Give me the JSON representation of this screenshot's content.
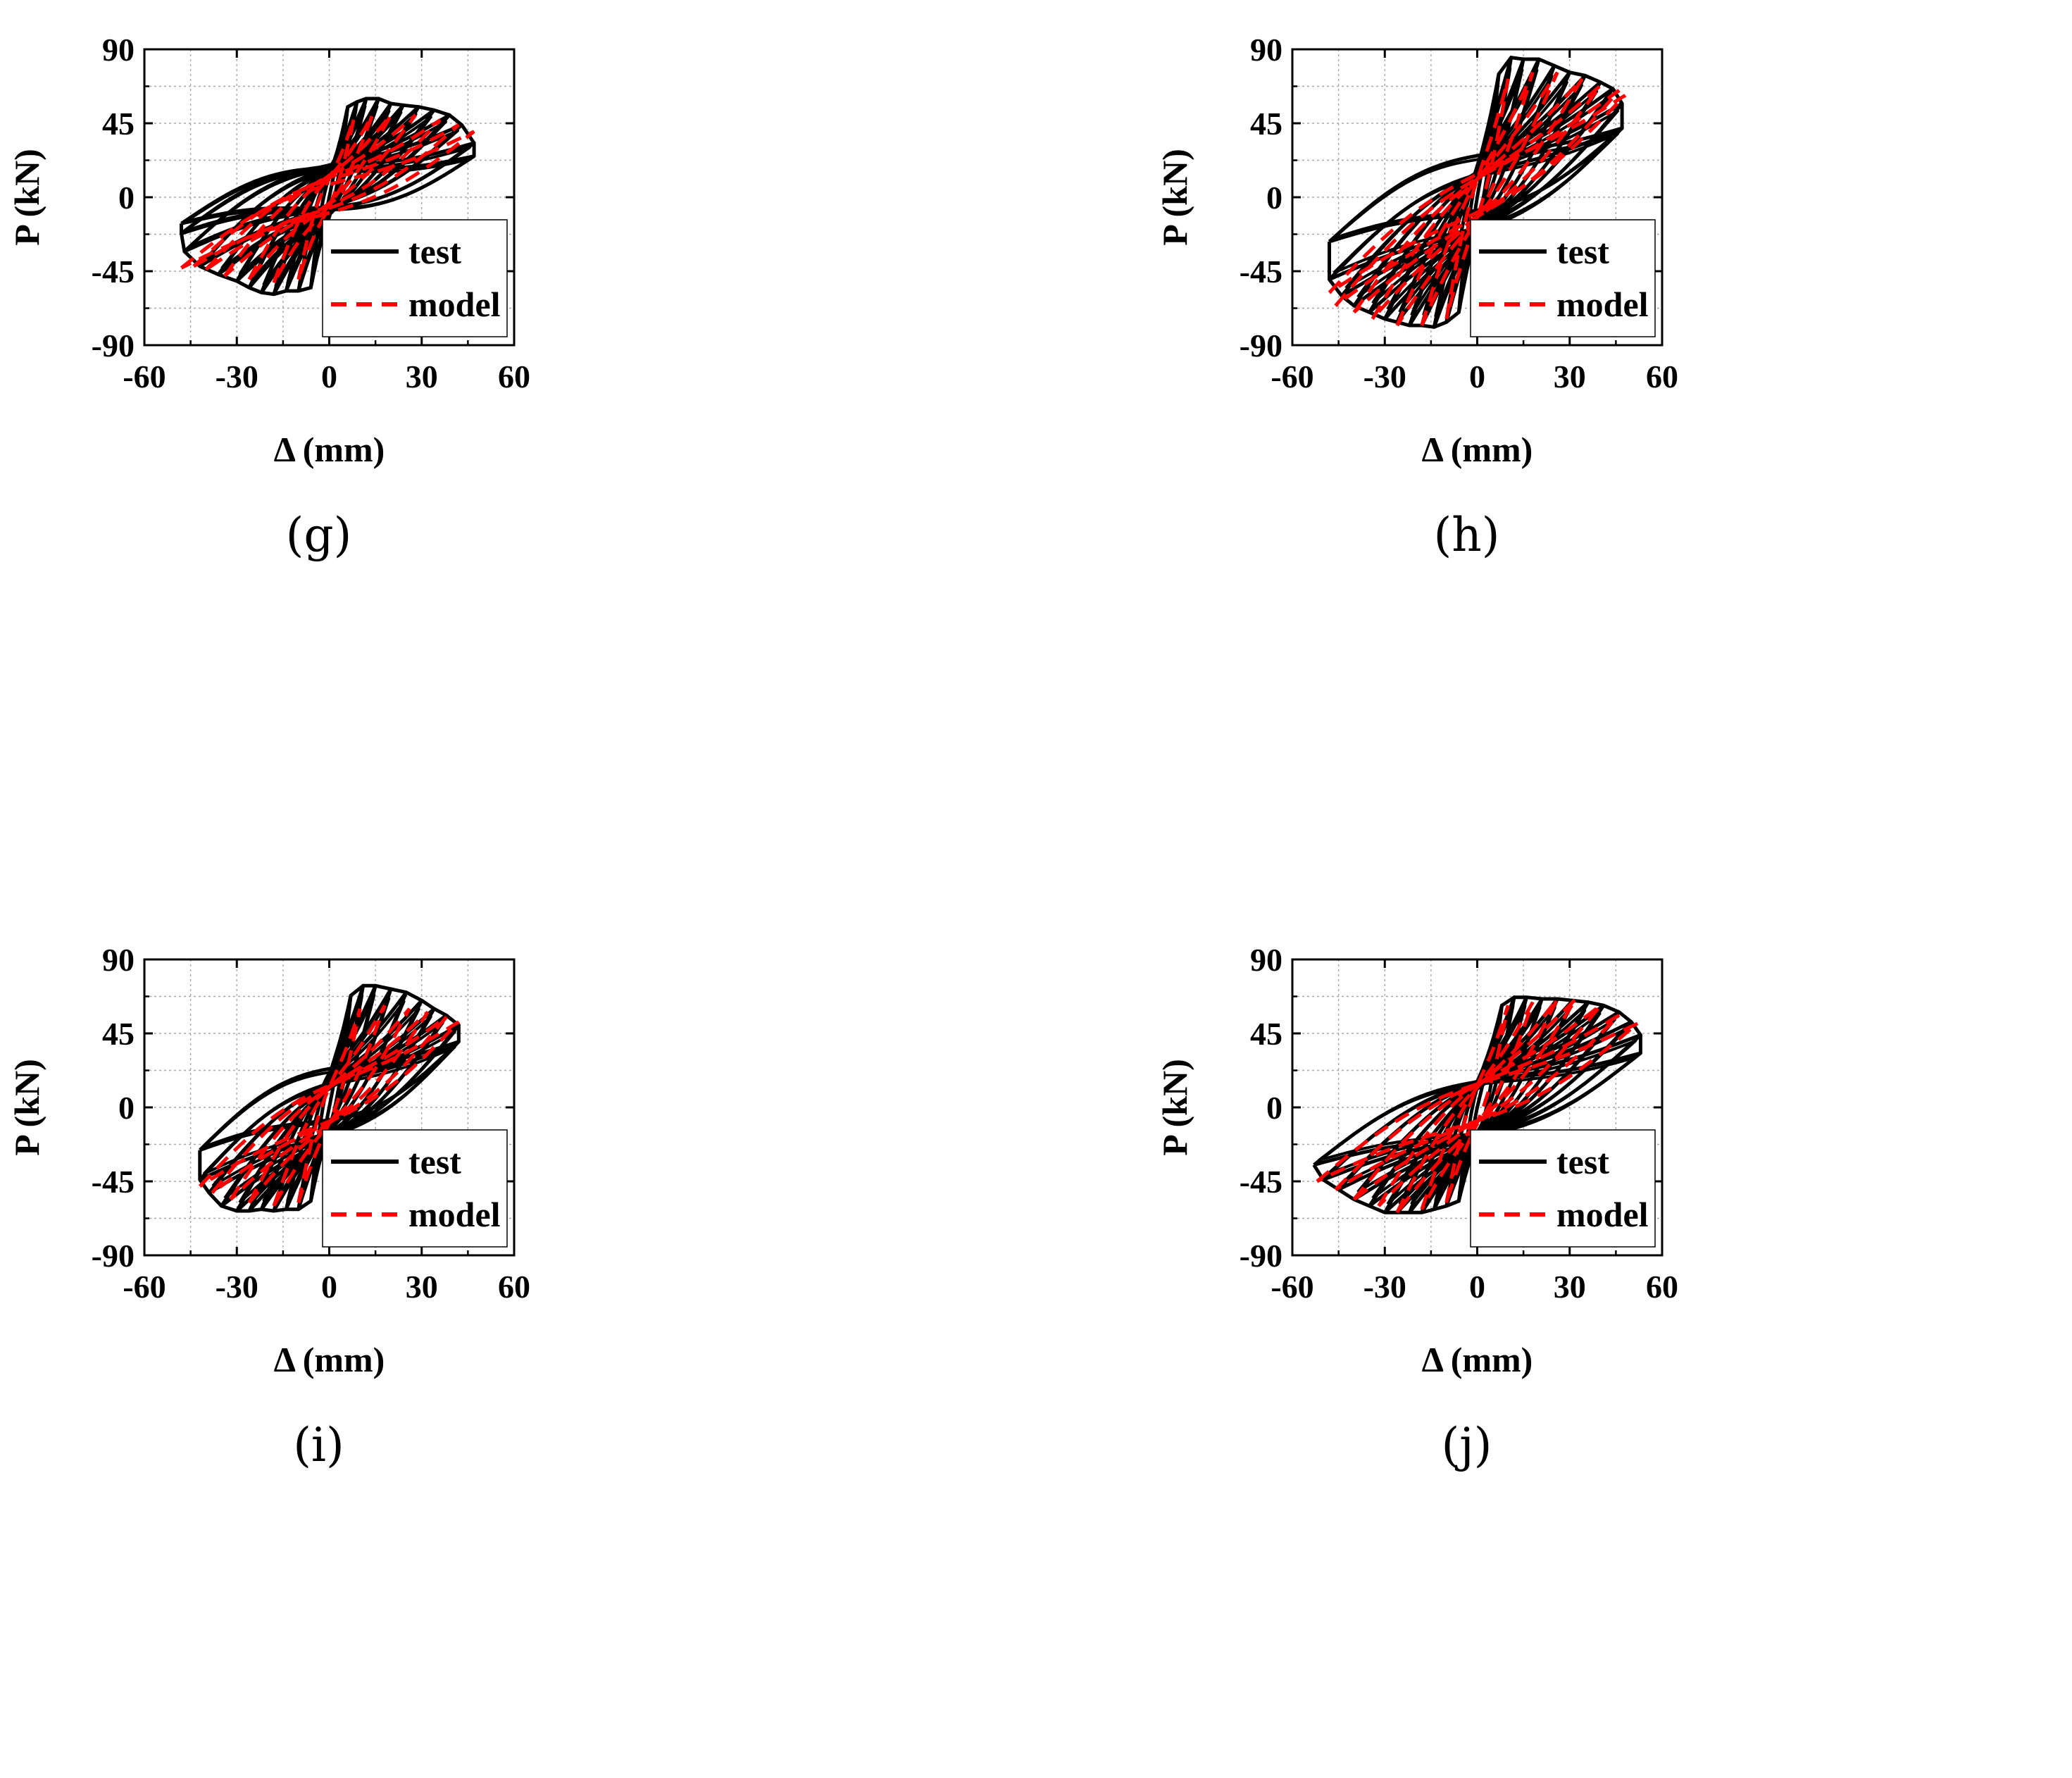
{
  "figure": {
    "panels": [
      "g",
      "h",
      "i",
      "j"
    ]
  },
  "chart_data": [
    {
      "panel": "g",
      "label": "(g)",
      "type": "line",
      "xlabel": "Δ (mm)",
      "ylabel": "P (kN)",
      "xlim": [
        -60,
        60
      ],
      "ylim": [
        -90,
        90
      ],
      "xticks": [
        "-60",
        "-30",
        "0",
        "30",
        "60"
      ],
      "yticks": [
        "-90",
        "-45",
        "0",
        "45",
        "90"
      ],
      "grid": true,
      "legend_position": "bottom-right",
      "series": [
        {
          "name": "test",
          "color": "#000000",
          "style": "solid"
        },
        {
          "name": "model",
          "color": "#ff0000",
          "style": "dashed"
        }
      ],
      "cycles": {
        "peak_pos": [
          [
            6,
            55
          ],
          [
            9,
            58
          ],
          [
            12,
            60
          ],
          [
            16,
            60
          ],
          [
            20,
            57
          ],
          [
            24,
            56
          ],
          [
            29,
            55
          ],
          [
            34,
            53
          ],
          [
            39,
            50
          ],
          [
            43,
            44
          ],
          [
            47,
            33
          ],
          [
            47,
            25
          ]
        ],
        "peak_neg": [
          [
            -6,
            -55
          ],
          [
            -10,
            -57
          ],
          [
            -14,
            -57
          ],
          [
            -18,
            -59
          ],
          [
            -22,
            -58
          ],
          [
            -26,
            -55
          ],
          [
            -30,
            -51
          ],
          [
            -36,
            -47
          ],
          [
            -42,
            -42
          ],
          [
            -47,
            -33
          ],
          [
            -48,
            -22
          ],
          [
            -48,
            -16
          ]
        ],
        "model_peak_pos": [
          [
            8,
            48
          ],
          [
            14,
            50
          ],
          [
            20,
            50
          ],
          [
            28,
            50
          ],
          [
            36,
            47
          ],
          [
            42,
            44
          ],
          [
            47,
            40
          ]
        ],
        "model_peak_neg": [
          [
            -10,
            -50
          ],
          [
            -18,
            -52
          ],
          [
            -26,
            -50
          ],
          [
            -34,
            -48
          ],
          [
            -40,
            -44
          ],
          [
            -44,
            -42
          ],
          [
            -48,
            -43
          ]
        ],
        "pos_intercept": 24,
        "neg_intercept": -22
      }
    },
    {
      "panel": "h",
      "label": "(h)",
      "type": "line",
      "xlabel": "Δ (mm)",
      "ylabel": "P (kN)",
      "xlim": [
        -60,
        60
      ],
      "ylim": [
        -90,
        90
      ],
      "xticks": [
        "-60",
        "-30",
        "0",
        "30",
        "60"
      ],
      "yticks": [
        "-90",
        "-45",
        "0",
        "45",
        "90"
      ],
      "grid": true,
      "legend_position": "bottom-right",
      "series": [
        {
          "name": "test",
          "color": "#000000",
          "style": "solid"
        },
        {
          "name": "model",
          "color": "#ff0000",
          "style": "dashed"
        }
      ],
      "cycles": {
        "peak_pos": [
          [
            7,
            75
          ],
          [
            11,
            85
          ],
          [
            15,
            84
          ],
          [
            20,
            84
          ],
          [
            25,
            80
          ],
          [
            30,
            76
          ],
          [
            35,
            74
          ],
          [
            40,
            70
          ],
          [
            44,
            66
          ],
          [
            47,
            57
          ],
          [
            47,
            42
          ]
        ],
        "peak_neg": [
          [
            -6,
            -70
          ],
          [
            -10,
            -76
          ],
          [
            -14,
            -79
          ],
          [
            -18,
            -78
          ],
          [
            -22,
            -78
          ],
          [
            -26,
            -76
          ],
          [
            -30,
            -74
          ],
          [
            -35,
            -70
          ],
          [
            -40,
            -66
          ],
          [
            -44,
            -60
          ],
          [
            -48,
            -50
          ],
          [
            -48,
            -27
          ]
        ],
        "model_peak_pos": [
          [
            10,
            72
          ],
          [
            18,
            76
          ],
          [
            26,
            76
          ],
          [
            34,
            72
          ],
          [
            40,
            68
          ],
          [
            46,
            65
          ],
          [
            48,
            62
          ]
        ],
        "model_peak_neg": [
          [
            -10,
            -74
          ],
          [
            -18,
            -78
          ],
          [
            -26,
            -78
          ],
          [
            -34,
            -74
          ],
          [
            -40,
            -70
          ],
          [
            -46,
            -66
          ],
          [
            -48,
            -58
          ]
        ],
        "pos_intercept": 32,
        "neg_intercept": -30
      }
    },
    {
      "panel": "i",
      "label": "(i)",
      "type": "line",
      "xlabel": "Δ (mm)",
      "ylabel": "P (kN)",
      "xlim": [
        -60,
        60
      ],
      "ylim": [
        -90,
        90
      ],
      "xticks": [
        "-60",
        "-30",
        "0",
        "30",
        "60"
      ],
      "yticks": [
        "-90",
        "-45",
        "0",
        "45",
        "90"
      ],
      "grid": true,
      "legend_position": "bottom-right",
      "series": [
        {
          "name": "test",
          "color": "#000000",
          "style": "solid"
        },
        {
          "name": "model",
          "color": "#ff0000",
          "style": "dashed"
        }
      ],
      "cycles": {
        "peak_pos": [
          [
            7,
            68
          ],
          [
            11,
            74
          ],
          [
            15,
            74
          ],
          [
            20,
            72
          ],
          [
            25,
            70
          ],
          [
            30,
            65
          ],
          [
            34,
            60
          ],
          [
            38,
            56
          ],
          [
            42,
            50
          ],
          [
            42,
            40
          ]
        ],
        "peak_neg": [
          [
            -6,
            -57
          ],
          [
            -10,
            -62
          ],
          [
            -14,
            -62
          ],
          [
            -18,
            -63
          ],
          [
            -22,
            -62
          ],
          [
            -26,
            -63
          ],
          [
            -30,
            -63
          ],
          [
            -35,
            -60
          ],
          [
            -39,
            -52
          ],
          [
            -42,
            -44
          ],
          [
            -42,
            -26
          ]
        ],
        "model_peak_pos": [
          [
            10,
            60
          ],
          [
            18,
            62
          ],
          [
            26,
            60
          ],
          [
            32,
            58
          ],
          [
            38,
            55
          ],
          [
            42,
            52
          ]
        ],
        "model_peak_neg": [
          [
            -10,
            -58
          ],
          [
            -18,
            -60
          ],
          [
            -26,
            -58
          ],
          [
            -32,
            -56
          ],
          [
            -38,
            -52
          ],
          [
            -42,
            -48
          ]
        ],
        "pos_intercept": 30,
        "neg_intercept": -28
      }
    },
    {
      "panel": "j",
      "label": "(j)",
      "type": "line",
      "xlabel": "Δ (mm)",
      "ylabel": "P (kN)",
      "xlim": [
        -60,
        60
      ],
      "ylim": [
        -90,
        90
      ],
      "xticks": [
        "-60",
        "-30",
        "0",
        "30",
        "60"
      ],
      "yticks": [
        "-90",
        "-45",
        "0",
        "45",
        "90"
      ],
      "grid": true,
      "legend_position": "bottom-right",
      "series": [
        {
          "name": "test",
          "color": "#000000",
          "style": "solid"
        },
        {
          "name": "model",
          "color": "#ff0000",
          "style": "dashed"
        }
      ],
      "cycles": {
        "peak_pos": [
          [
            8,
            62
          ],
          [
            12,
            67
          ],
          [
            16,
            67
          ],
          [
            21,
            66
          ],
          [
            26,
            66
          ],
          [
            31,
            65
          ],
          [
            36,
            64
          ],
          [
            41,
            62
          ],
          [
            46,
            58
          ],
          [
            50,
            52
          ],
          [
            53,
            44
          ],
          [
            53,
            33
          ]
        ],
        "peak_neg": [
          [
            -6,
            -57
          ],
          [
            -10,
            -60
          ],
          [
            -14,
            -62
          ],
          [
            -18,
            -64
          ],
          [
            -22,
            -64
          ],
          [
            -26,
            -64
          ],
          [
            -30,
            -64
          ],
          [
            -35,
            -60
          ],
          [
            -40,
            -56
          ],
          [
            -45,
            -50
          ],
          [
            -50,
            -44
          ],
          [
            -53,
            -35
          ]
        ],
        "model_peak_pos": [
          [
            10,
            62
          ],
          [
            18,
            64
          ],
          [
            26,
            66
          ],
          [
            32,
            66
          ],
          [
            40,
            62
          ],
          [
            46,
            56
          ],
          [
            52,
            51
          ]
        ],
        "model_peak_neg": [
          [
            -10,
            -58
          ],
          [
            -18,
            -62
          ],
          [
            -26,
            -64
          ],
          [
            -32,
            -60
          ],
          [
            -40,
            -56
          ],
          [
            -46,
            -50
          ],
          [
            -52,
            -45
          ]
        ],
        "pos_intercept": 30,
        "neg_intercept": -30
      }
    }
  ]
}
